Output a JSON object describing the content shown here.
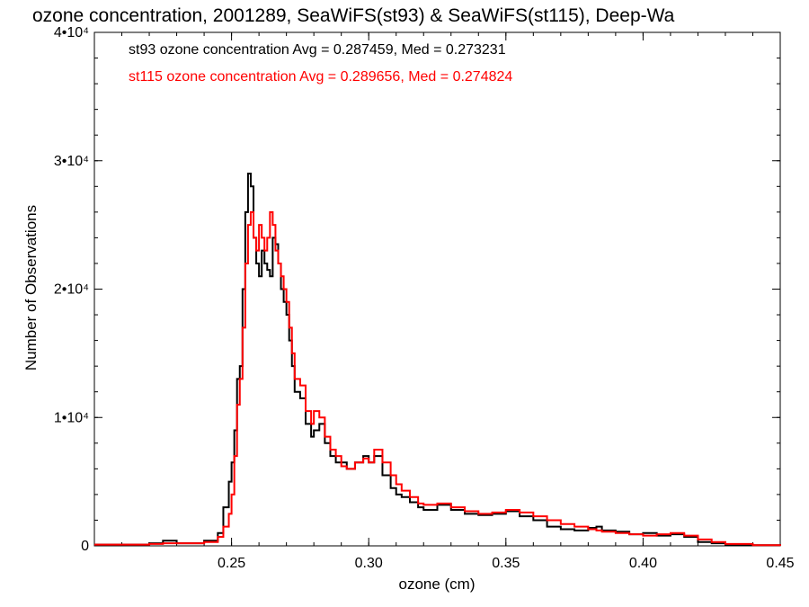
{
  "chart_data": {
    "type": "line",
    "title": "ozone concentration, 2001289, SeaWiFS(st93) & SeaWiFS(st115), Deep-Wa",
    "xlabel": "ozone (cm)",
    "ylabel": "Number of Observations",
    "xlim": [
      0.2,
      0.45
    ],
    "ylim": [
      0,
      40000
    ],
    "x_ticks": [
      {
        "value": 0.25,
        "label": "0.25"
      },
      {
        "value": 0.3,
        "label": "0.30"
      },
      {
        "value": 0.35,
        "label": "0.35"
      },
      {
        "value": 0.4,
        "label": "0.40"
      },
      {
        "value": 0.45,
        "label": "0.45"
      }
    ],
    "y_ticks": [
      {
        "value": 0,
        "label": "0"
      },
      {
        "value": 10000,
        "label": "1•10⁴"
      },
      {
        "value": 20000,
        "label": "2•10⁴"
      },
      {
        "value": 30000,
        "label": "3•10⁴"
      },
      {
        "value": 40000,
        "label": "4•10⁴"
      }
    ],
    "grid": false,
    "annotations": [
      {
        "text": "st93 ozone concentration Avg = 0.287459, Med = 0.273231",
        "color": "#000000"
      },
      {
        "text": "st115 ozone concentration Avg = 0.289656, Med = 0.274824",
        "color": "#ff0000"
      }
    ],
    "series": [
      {
        "color": "#000000",
        "x": [
          0.2,
          0.22,
          0.225,
          0.23,
          0.24,
          0.245,
          0.247,
          0.249,
          0.25,
          0.251,
          0.252,
          0.253,
          0.254,
          0.255,
          0.256,
          0.257,
          0.258,
          0.259,
          0.26,
          0.261,
          0.262,
          0.263,
          0.264,
          0.265,
          0.266,
          0.267,
          0.268,
          0.269,
          0.27,
          0.271,
          0.272,
          0.273,
          0.275,
          0.277,
          0.279,
          0.28,
          0.282,
          0.284,
          0.286,
          0.288,
          0.29,
          0.292,
          0.295,
          0.298,
          0.3,
          0.302,
          0.305,
          0.308,
          0.31,
          0.312,
          0.315,
          0.318,
          0.32,
          0.325,
          0.33,
          0.335,
          0.34,
          0.345,
          0.35,
          0.355,
          0.36,
          0.365,
          0.37,
          0.375,
          0.38,
          0.383,
          0.385,
          0.39,
          0.395,
          0.4,
          0.405,
          0.41,
          0.415,
          0.42,
          0.425,
          0.43,
          0.44,
          0.45
        ],
        "y": [
          100,
          200,
          400,
          200,
          400,
          1000,
          3000,
          5000,
          6500,
          9000,
          13000,
          14000,
          20000,
          26000,
          29000,
          28000,
          24000,
          22000,
          21000,
          23000,
          22000,
          21500,
          21000,
          24000,
          23500,
          22000,
          20000,
          19000,
          18000,
          16000,
          14000,
          12000,
          11500,
          9500,
          8500,
          9000,
          9500,
          8000,
          7000,
          6500,
          6500,
          6000,
          6500,
          7000,
          6500,
          7000,
          5500,
          4500,
          4000,
          3800,
          3400,
          3000,
          2800,
          3200,
          2800,
          2500,
          2400,
          2500,
          2700,
          2300,
          2000,
          1500,
          1300,
          1200,
          1400,
          1500,
          1200,
          1100,
          900,
          1000,
          800,
          900,
          700,
          300,
          200,
          100,
          50,
          0
        ]
      },
      {
        "color": "#ff0000",
        "x": [
          0.2,
          0.22,
          0.225,
          0.23,
          0.24,
          0.245,
          0.247,
          0.249,
          0.25,
          0.251,
          0.252,
          0.253,
          0.254,
          0.255,
          0.256,
          0.257,
          0.258,
          0.259,
          0.26,
          0.261,
          0.262,
          0.263,
          0.264,
          0.265,
          0.266,
          0.267,
          0.268,
          0.269,
          0.27,
          0.271,
          0.272,
          0.273,
          0.275,
          0.277,
          0.279,
          0.28,
          0.282,
          0.284,
          0.286,
          0.288,
          0.29,
          0.292,
          0.295,
          0.298,
          0.3,
          0.302,
          0.305,
          0.308,
          0.31,
          0.312,
          0.315,
          0.318,
          0.32,
          0.325,
          0.33,
          0.335,
          0.34,
          0.345,
          0.35,
          0.355,
          0.36,
          0.365,
          0.37,
          0.375,
          0.38,
          0.383,
          0.385,
          0.39,
          0.395,
          0.4,
          0.405,
          0.41,
          0.415,
          0.42,
          0.425,
          0.43,
          0.44,
          0.45
        ],
        "y": [
          100,
          150,
          200,
          200,
          300,
          700,
          1500,
          2500,
          4000,
          7000,
          11000,
          13000,
          17000,
          22000,
          25000,
          26000,
          24000,
          23000,
          25000,
          24000,
          23000,
          24000,
          26000,
          25000,
          23000,
          22000,
          21000,
          20000,
          19000,
          17000,
          15000,
          13000,
          12500,
          10500,
          9500,
          10500,
          10000,
          8500,
          7500,
          7000,
          6200,
          6000,
          6500,
          6800,
          6500,
          7500,
          6500,
          5500,
          4800,
          4300,
          3800,
          3300,
          3200,
          3300,
          3000,
          2700,
          2500,
          2600,
          2800,
          2600,
          2300,
          2000,
          1700,
          1500,
          1300,
          1200,
          1100,
          1000,
          900,
          800,
          900,
          1000,
          800,
          500,
          300,
          150,
          50,
          0
        ]
      }
    ]
  }
}
